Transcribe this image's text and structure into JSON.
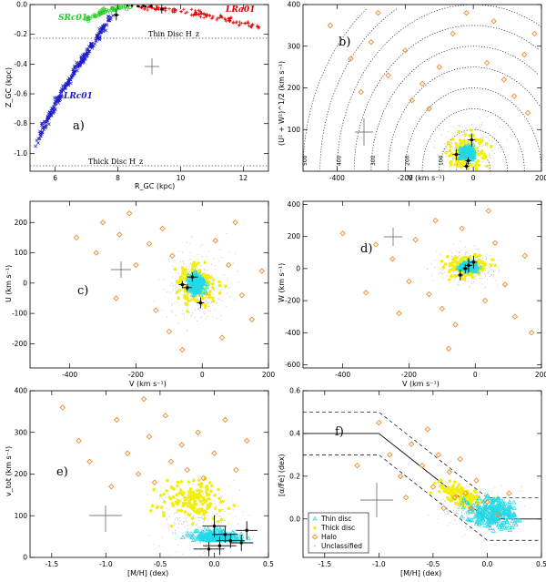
{
  "chart_data": [
    {
      "panel": "a)",
      "type": "scatter",
      "xlabel": "R_GC (kpc)",
      "ylabel": "Z_GC (kpc)",
      "xlim": [
        5.2,
        12.8
      ],
      "ylim": [
        -1.12,
        0.0
      ],
      "xticks": [
        "6",
        "8",
        "10",
        "12"
      ],
      "yticks": [
        "-1.0",
        "-0.8",
        "-0.6",
        "-0.4",
        "-0.2",
        "0.0"
      ],
      "series": [
        {
          "name": "LRc01",
          "color": "#1c1ccc",
          "x": [
            5.4,
            5.8,
            6.2,
            6.6,
            7.0,
            7.4,
            7.8
          ],
          "y": [
            -0.95,
            -0.75,
            -0.6,
            -0.45,
            -0.33,
            -0.2,
            -0.08
          ]
        },
        {
          "name": "SRc01",
          "color": "#22cc22",
          "x": [
            7.0,
            7.5,
            8.0,
            8.4
          ],
          "y": [
            -0.1,
            -0.05,
            -0.02,
            -0.01
          ]
        },
        {
          "name": "LRa01",
          "color": "#e00000",
          "x": [
            8.6,
            9.5,
            10.5,
            11.5,
            12.5
          ],
          "y": [
            -0.01,
            -0.03,
            -0.06,
            -0.1,
            -0.15
          ]
        }
      ],
      "annotations": [
        "SRc01",
        "LRa01",
        "LRc01",
        "Thin Disc H_z",
        "Thick Disc H_z",
        "a)"
      ],
      "hlines": [
        {
          "label": "Thin Disc H_z",
          "y": -0.21
        },
        {
          "label": "Thick Disc H_z",
          "y": -1.05
        }
      ]
    },
    {
      "panel": "b)",
      "type": "scatter",
      "xlabel": "V (km s⁻¹)",
      "ylabel": "(U² + W²)^1/2 (km s⁻¹)",
      "xlim": [
        -500,
        200
      ],
      "ylim": [
        0,
        400
      ],
      "xticks": [
        "-400",
        "-200",
        "0",
        "200"
      ],
      "yticks": [
        "100",
        "200",
        "300",
        "400"
      ],
      "circle_labels": [
        "500",
        "400",
        "300",
        "200",
        "100"
      ],
      "series_halo": [
        [
          -420,
          350
        ],
        [
          -360,
          270
        ],
        [
          -300,
          310
        ],
        [
          -250,
          230
        ],
        [
          -200,
          290
        ],
        [
          -150,
          210
        ],
        [
          -330,
          190
        ],
        [
          -100,
          250
        ],
        [
          -180,
          170
        ],
        [
          -60,
          330
        ],
        [
          40,
          260
        ],
        [
          90,
          220
        ],
        [
          150,
          280
        ],
        [
          120,
          180
        ],
        [
          180,
          330
        ],
        [
          -20,
          380
        ],
        [
          60,
          360
        ],
        [
          -280,
          380
        ],
        [
          160,
          140
        ],
        [
          -130,
          150
        ]
      ]
    },
    {
      "panel": "c)",
      "type": "scatter",
      "xlabel": "V (km s⁻¹)",
      "ylabel": "U (km s⁻¹)",
      "xlim": [
        -520,
        200
      ],
      "ylim": [
        -280,
        270
      ],
      "xticks": [
        "-400",
        "-200",
        "0",
        "200"
      ],
      "yticks": [
        "-200",
        "-100",
        "0",
        "100",
        "200"
      ],
      "series_halo": [
        [
          -380,
          150
        ],
        [
          -300,
          200
        ],
        [
          -250,
          160
        ],
        [
          -220,
          230
        ],
        [
          -160,
          130
        ],
        [
          -120,
          180
        ],
        [
          -200,
          60
        ],
        [
          -90,
          90
        ],
        [
          -260,
          -50
        ],
        [
          -140,
          -90
        ],
        [
          -100,
          -160
        ],
        [
          -60,
          -220
        ],
        [
          40,
          140
        ],
        [
          80,
          60
        ],
        [
          120,
          -40
        ],
        [
          150,
          -120
        ],
        [
          60,
          -180
        ],
        [
          180,
          40
        ],
        [
          -320,
          100
        ],
        [
          100,
          200
        ]
      ]
    },
    {
      "panel": "d)",
      "type": "scatter",
      "xlabel": "V (km s⁻¹)",
      "ylabel": "W (km s⁻¹)",
      "xlim": [
        -520,
        200
      ],
      "ylim": [
        -620,
        420
      ],
      "xticks": [
        "-400",
        "-200",
        "0",
        "200"
      ],
      "yticks": [
        "-600",
        "-400",
        "-200",
        "0",
        "200",
        "400"
      ],
      "series_halo": [
        [
          -400,
          220
        ],
        [
          -300,
          150
        ],
        [
          -250,
          60
        ],
        [
          -200,
          -80
        ],
        [
          -180,
          180
        ],
        [
          -140,
          -160
        ],
        [
          -120,
          300
        ],
        [
          -100,
          -250
        ],
        [
          -60,
          -350
        ],
        [
          -40,
          250
        ],
        [
          30,
          -200
        ],
        [
          60,
          160
        ],
        [
          90,
          -100
        ],
        [
          120,
          -300
        ],
        [
          150,
          80
        ],
        [
          -230,
          -280
        ],
        [
          -330,
          -150
        ],
        [
          170,
          -400
        ],
        [
          -80,
          -500
        ],
        [
          40,
          360
        ]
      ]
    },
    {
      "panel": "e)",
      "type": "scatter",
      "xlabel": "[M/H] (dex)",
      "ylabel": "v_tot (km s⁻¹)",
      "xlim": [
        -1.7,
        0.5
      ],
      "ylim": [
        0,
        400
      ],
      "xticks": [
        "-1.5",
        "-1.0",
        "-0.5",
        "0.0",
        "0.5"
      ],
      "yticks": [
        "0",
        "100",
        "200",
        "300",
        "400"
      ],
      "series_halo": [
        [
          -1.4,
          360
        ],
        [
          -1.25,
          280
        ],
        [
          -1.15,
          230
        ],
        [
          -0.9,
          330
        ],
        [
          -0.8,
          250
        ],
        [
          -0.7,
          200
        ],
        [
          -0.6,
          290
        ],
        [
          -0.55,
          180
        ],
        [
          -0.45,
          340
        ],
        [
          -0.4,
          230
        ],
        [
          -0.3,
          270
        ],
        [
          -0.25,
          210
        ],
        [
          -0.15,
          300
        ],
        [
          -0.1,
          190
        ],
        [
          0.0,
          250
        ],
        [
          0.1,
          330
        ],
        [
          0.2,
          210
        ],
        [
          -0.95,
          170
        ],
        [
          -0.65,
          380
        ],
        [
          0.3,
          280
        ]
      ]
    },
    {
      "panel": "f)",
      "type": "scatter",
      "xlabel": "[M/H] (dex)",
      "ylabel": "[α/Fe] (dex)",
      "xlim": [
        -1.7,
        0.5
      ],
      "ylim": [
        -0.18,
        0.6
      ],
      "xticks": [
        "-1.5",
        "-1.0",
        "-0.5",
        "0.0",
        "0.5"
      ],
      "yticks": [
        "0.0",
        "0.2",
        "0.4",
        "0.6"
      ],
      "legend": [
        "Thin disc",
        "Thick disc",
        "Halo",
        "Unclassified"
      ],
      "legend_colors": [
        "#22d8e8",
        "#f2ee10",
        "#f08a30",
        "#b8b8b8"
      ],
      "series_halo": [
        [
          -1.0,
          0.45
        ],
        [
          -0.9,
          0.3
        ],
        [
          -0.8,
          0.2
        ],
        [
          -0.7,
          0.35
        ],
        [
          -0.6,
          0.25
        ],
        [
          -0.5,
          0.15
        ],
        [
          -0.45,
          0.3
        ],
        [
          -0.35,
          0.22
        ],
        [
          -0.3,
          0.1
        ],
        [
          -0.25,
          0.28
        ],
        [
          -0.2,
          0.12
        ],
        [
          -0.15,
          0.05
        ],
        [
          -0.1,
          0.18
        ],
        [
          0.0,
          0.08
        ],
        [
          0.1,
          0.02
        ],
        [
          -0.55,
          0.42
        ],
        [
          -0.75,
          0.1
        ],
        [
          0.2,
          0.12
        ],
        [
          -1.2,
          0.25
        ],
        [
          -0.4,
          0.05
        ]
      ]
    }
  ]
}
